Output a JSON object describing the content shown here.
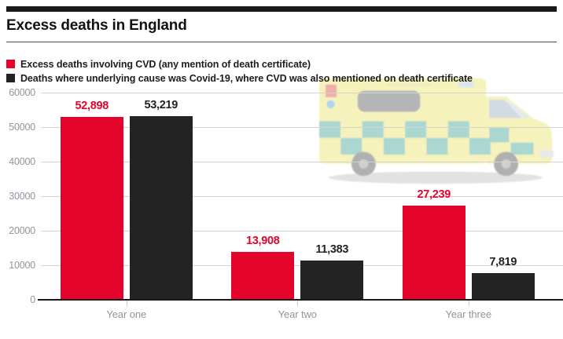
{
  "header": {
    "title": "Excess deaths in England"
  },
  "legend": [
    {
      "label": "Excess deaths involving CVD (any mention of death certificate)",
      "color": "#e4032b"
    },
    {
      "label": "Deaths where underlying cause was Covid-19, where CVD was also mentioned on death certificate",
      "color": "#232323"
    }
  ],
  "background_image": {
    "name": "ambulance-image"
  },
  "chart_data": {
    "type": "bar",
    "title": "Excess deaths in England",
    "categories": [
      "Year one",
      "Year two",
      "Year three"
    ],
    "series": [
      {
        "name": "Excess deaths involving CVD (any mention of death certificate)",
        "color": "#e4032b",
        "values": [
          52898,
          13908,
          27239
        ],
        "labels": [
          "52,898",
          "13,908",
          "27,239"
        ]
      },
      {
        "name": "Deaths where underlying cause was Covid-19, where CVD was also mentioned on death certificate",
        "color": "#232323",
        "values": [
          53219,
          11383,
          7819
        ],
        "labels": [
          "53,219",
          "11,383",
          "7,819"
        ]
      }
    ],
    "xlabel": "",
    "ylabel": "",
    "ylim": [
      0,
      60000
    ],
    "yticks": [
      0,
      10000,
      20000,
      30000,
      40000,
      50000,
      60000
    ],
    "grid": true,
    "legend_position": "top-left"
  }
}
